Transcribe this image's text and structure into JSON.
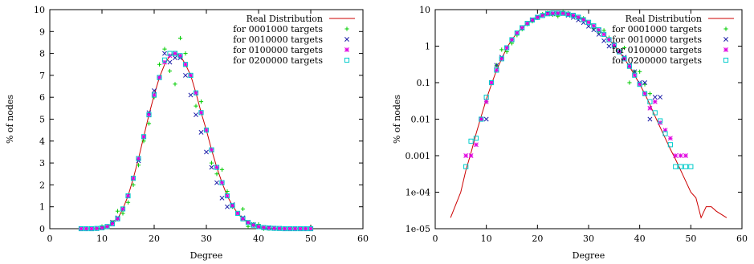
{
  "chart_data": [
    {
      "type": "scatter",
      "title": "",
      "xlabel": "Degree",
      "ylabel": "% of nodes",
      "xlim": [
        0,
        60
      ],
      "ylim": [
        0,
        10
      ],
      "yscale": "linear",
      "grid": false,
      "legend_position": "top-right",
      "x_ticks": [
        "0",
        "10",
        "20",
        "30",
        "40",
        "50",
        "60"
      ],
      "y_ticks": [
        "0",
        "1",
        "2",
        "3",
        "4",
        "5",
        "6",
        "7",
        "8",
        "9",
        "10"
      ],
      "series": [
        {
          "name": "Real Distribution",
          "kind": "line",
          "color": "#cc0000",
          "x": [
            6,
            7,
            8,
            9,
            10,
            11,
            12,
            13,
            14,
            15,
            16,
            17,
            18,
            19,
            20,
            21,
            22,
            23,
            24,
            25,
            26,
            27,
            28,
            29,
            30,
            31,
            32,
            33,
            34,
            35,
            36,
            37,
            38,
            39,
            40,
            41,
            42,
            43,
            44,
            45,
            46,
            47,
            48,
            49,
            50
          ],
          "y": [
            0,
            0,
            0,
            0.01,
            0.04,
            0.1,
            0.22,
            0.45,
            0.9,
            1.5,
            2.3,
            3.2,
            4.2,
            5.2,
            6.1,
            6.9,
            7.5,
            7.9,
            8.0,
            7.9,
            7.5,
            7.0,
            6.2,
            5.3,
            4.5,
            3.6,
            2.8,
            2.1,
            1.5,
            1.05,
            0.7,
            0.45,
            0.28,
            0.16,
            0.09,
            0.05,
            0.03,
            0.015,
            0.01,
            0,
            0,
            0,
            0,
            0,
            0
          ]
        },
        {
          "name": "for 0001000 targets",
          "kind": "points",
          "marker": "plus",
          "color": "#00cc00",
          "x": [
            6,
            7,
            8,
            9,
            10,
            11,
            12,
            13,
            14,
            15,
            16,
            17,
            18,
            19,
            20,
            21,
            22,
            23,
            24,
            25,
            26,
            27,
            28,
            29,
            30,
            31,
            32,
            33,
            34,
            35,
            36,
            37,
            38,
            39,
            40,
            41,
            42,
            43,
            44,
            45,
            46,
            47,
            48,
            49,
            50
          ],
          "y": [
            0,
            0,
            0,
            0,
            0.1,
            0.1,
            0.3,
            0.8,
            0.7,
            1.2,
            2.0,
            2.9,
            4.0,
            4.8,
            6.0,
            7.5,
            8.2,
            7.2,
            6.6,
            8.7,
            8.0,
            7.0,
            5.6,
            5.8,
            4.5,
            3.0,
            2.5,
            2.7,
            1.7,
            1.0,
            0.7,
            0.9,
            0.1,
            0.2,
            0.2,
            0,
            0,
            0,
            0,
            0,
            0,
            0,
            0,
            0,
            0
          ]
        },
        {
          "name": "for 0010000 targets",
          "kind": "points",
          "marker": "cross",
          "color": "#1f1fa8",
          "x": [
            6,
            7,
            8,
            9,
            10,
            11,
            12,
            13,
            14,
            15,
            16,
            17,
            18,
            19,
            20,
            21,
            22,
            23,
            24,
            25,
            26,
            27,
            28,
            29,
            30,
            31,
            32,
            33,
            34,
            35,
            36,
            37,
            38,
            39,
            40,
            41,
            42,
            43,
            44,
            45,
            46,
            47,
            48,
            49,
            50
          ],
          "y": [
            0,
            0,
            0,
            0.01,
            0.04,
            0.1,
            0.3,
            0.5,
            0.9,
            1.5,
            2.3,
            3.1,
            4.2,
            5.3,
            6.3,
            6.9,
            8.0,
            7.6,
            7.8,
            7.8,
            7.0,
            6.1,
            5.2,
            4.4,
            3.5,
            2.8,
            2.1,
            1.4,
            1.0,
            1.1,
            0.7,
            0.5,
            0.3,
            0.2,
            0.1,
            0.05,
            0.05,
            0.03,
            0.01,
            0,
            0,
            0,
            0,
            0,
            0
          ]
        },
        {
          "name": "for 0100000 targets",
          "kind": "points",
          "marker": "star",
          "color": "#e000e0",
          "x": [
            6,
            7,
            8,
            9,
            10,
            11,
            12,
            13,
            14,
            15,
            16,
            17,
            18,
            19,
            20,
            21,
            22,
            23,
            24,
            25,
            26,
            27,
            28,
            29,
            30,
            31,
            32,
            33,
            34,
            35,
            36,
            37,
            38,
            39,
            40,
            41,
            42,
            43,
            44,
            45,
            46,
            47,
            48,
            49,
            50
          ],
          "y": [
            0,
            0,
            0,
            0.01,
            0.04,
            0.1,
            0.22,
            0.45,
            0.9,
            1.5,
            2.3,
            3.2,
            4.2,
            5.2,
            6.1,
            6.9,
            7.6,
            7.9,
            8.0,
            7.9,
            7.5,
            7.0,
            6.2,
            5.3,
            4.5,
            3.6,
            2.8,
            2.1,
            1.5,
            1.05,
            0.7,
            0.45,
            0.28,
            0.16,
            0.09,
            0.05,
            0.03,
            0.015,
            0.01,
            0,
            0,
            0,
            0,
            0,
            0
          ]
        },
        {
          "name": "for 0200000 targets",
          "kind": "points",
          "marker": "square",
          "color": "#00cccc",
          "x": [
            6,
            7,
            8,
            9,
            10,
            11,
            12,
            13,
            14,
            15,
            16,
            17,
            18,
            19,
            20,
            21,
            22,
            23,
            24,
            25,
            26,
            27,
            28,
            29,
            30,
            31,
            32,
            33,
            34,
            35,
            36,
            37,
            38,
            39,
            40,
            41,
            42,
            43,
            44,
            45,
            46,
            47,
            48,
            49,
            50
          ],
          "y": [
            0,
            0,
            0,
            0.01,
            0.04,
            0.1,
            0.22,
            0.45,
            0.9,
            1.5,
            2.3,
            3.2,
            4.2,
            5.2,
            6.1,
            6.9,
            7.7,
            8.0,
            8.0,
            7.9,
            7.5,
            7.0,
            6.2,
            5.3,
            4.5,
            3.6,
            2.8,
            2.1,
            1.5,
            1.05,
            0.7,
            0.45,
            0.28,
            0.16,
            0.09,
            0.05,
            0.03,
            0.015,
            0.01,
            0,
            0,
            0,
            0,
            0,
            0
          ]
        }
      ]
    },
    {
      "type": "scatter",
      "title": "",
      "xlabel": "Degree",
      "ylabel": "% of nodes",
      "xlim": [
        0,
        60
      ],
      "ylim": [
        1e-05,
        10
      ],
      "yscale": "log",
      "grid": false,
      "legend_position": "top-right",
      "x_ticks": [
        "0",
        "10",
        "20",
        "30",
        "40",
        "50",
        "60"
      ],
      "y_ticks": [
        "1e-05",
        "1e-04",
        "0.001",
        "0.01",
        "0.1",
        "1",
        "10"
      ],
      "series": [
        {
          "name": "Real Distribution",
          "kind": "line",
          "color": "#cc0000",
          "x": [
            3,
            5,
            6,
            7,
            8,
            9,
            10,
            11,
            12,
            13,
            14,
            15,
            16,
            17,
            18,
            19,
            20,
            21,
            22,
            23,
            24,
            25,
            26,
            27,
            28,
            29,
            30,
            31,
            32,
            33,
            34,
            35,
            36,
            37,
            38,
            39,
            40,
            41,
            42,
            43,
            44,
            45,
            46,
            47,
            48,
            49,
            50,
            51,
            52,
            53,
            54,
            55,
            57
          ],
          "y": [
            2e-05,
            0.0001,
            0.0004,
            0.0012,
            0.004,
            0.012,
            0.035,
            0.09,
            0.22,
            0.45,
            0.9,
            1.5,
            2.3,
            3.2,
            4.2,
            5.2,
            6.1,
            6.9,
            7.5,
            7.9,
            8.0,
            7.9,
            7.5,
            7.0,
            6.2,
            5.3,
            4.5,
            3.6,
            2.8,
            2.1,
            1.5,
            1.05,
            0.7,
            0.45,
            0.28,
            0.16,
            0.09,
            0.05,
            0.025,
            0.012,
            0.006,
            0.003,
            0.0015,
            0.0008,
            0.0004,
            0.0002,
            0.0001,
            7e-05,
            2e-05,
            4e-05,
            4e-05,
            3e-05,
            2e-05
          ]
        },
        {
          "name": "for 0001000 targets",
          "kind": "points",
          "marker": "plus",
          "color": "#00cc00",
          "x": [
            9,
            10,
            11,
            12,
            13,
            14,
            15,
            16,
            17,
            18,
            19,
            20,
            21,
            22,
            23,
            24,
            25,
            26,
            27,
            28,
            29,
            30,
            31,
            32,
            33,
            34,
            35,
            36,
            37,
            38,
            39,
            40,
            41,
            42
          ],
          "y": [
            0.01,
            0.03,
            0.1,
            0.3,
            0.8,
            0.7,
            1.2,
            2.0,
            2.9,
            4.0,
            4.8,
            6.0,
            7.5,
            8.2,
            7.2,
            6.6,
            8.7,
            8.0,
            7.0,
            5.6,
            5.8,
            4.5,
            3.0,
            2.5,
            2.7,
            1.7,
            1.0,
            0.7,
            0.9,
            0.1,
            0.2,
            0.2,
            0.09,
            0.05
          ]
        },
        {
          "name": "for 0010000 targets",
          "kind": "points",
          "marker": "cross",
          "color": "#1f1fa8",
          "x": [
            9,
            10,
            11,
            12,
            13,
            14,
            15,
            16,
            17,
            18,
            19,
            20,
            21,
            22,
            23,
            24,
            25,
            26,
            27,
            28,
            29,
            30,
            31,
            32,
            33,
            34,
            35,
            36,
            37,
            38,
            39,
            40,
            41,
            42,
            43,
            44
          ],
          "y": [
            0.01,
            0.01,
            0.1,
            0.3,
            0.5,
            0.9,
            1.5,
            2.3,
            3.1,
            4.2,
            5.3,
            6.3,
            6.9,
            8.0,
            7.6,
            7.8,
            7.8,
            7.0,
            6.1,
            5.2,
            4.4,
            3.5,
            2.8,
            2.1,
            1.4,
            1.0,
            1.1,
            0.7,
            0.5,
            0.3,
            0.2,
            0.1,
            0.1,
            0.01,
            0.04,
            0.04
          ]
        },
        {
          "name": "for 0100000 targets",
          "kind": "points",
          "marker": "star",
          "color": "#e000e0",
          "x": [
            6,
            7,
            8,
            9,
            10,
            11,
            12,
            13,
            14,
            15,
            16,
            17,
            18,
            19,
            20,
            21,
            22,
            23,
            24,
            25,
            26,
            27,
            28,
            29,
            30,
            31,
            32,
            33,
            34,
            35,
            36,
            37,
            38,
            39,
            40,
            41,
            42,
            43,
            44,
            45,
            46,
            47,
            48,
            49
          ],
          "y": [
            0.001,
            0.001,
            0.002,
            0.01,
            0.03,
            0.1,
            0.22,
            0.45,
            0.9,
            1.5,
            2.3,
            3.2,
            4.2,
            5.2,
            6.1,
            6.9,
            7.6,
            7.9,
            8.0,
            7.9,
            7.5,
            7.0,
            6.2,
            5.3,
            4.5,
            3.6,
            2.8,
            2.1,
            1.5,
            1.05,
            0.7,
            0.45,
            0.28,
            0.16,
            0.09,
            0.05,
            0.02,
            0.03,
            0.008,
            0.005,
            0.003,
            0.001,
            0.001,
            0.001
          ]
        },
        {
          "name": "for 0200000 targets",
          "kind": "points",
          "marker": "square",
          "color": "#00cccc",
          "x": [
            6,
            7,
            8,
            9,
            10,
            11,
            12,
            13,
            14,
            15,
            16,
            17,
            18,
            19,
            20,
            21,
            22,
            23,
            24,
            25,
            26,
            27,
            28,
            29,
            30,
            31,
            32,
            33,
            34,
            35,
            36,
            37,
            38,
            39,
            40,
            41,
            42,
            43,
            44,
            45,
            46,
            47,
            48,
            49,
            50
          ],
          "y": [
            0.0005,
            0.0025,
            0.003,
            0.01,
            0.04,
            0.1,
            0.22,
            0.45,
            0.9,
            1.5,
            2.3,
            3.2,
            4.2,
            5.2,
            6.1,
            6.9,
            7.7,
            8.0,
            8.0,
            7.9,
            7.5,
            7.0,
            6.2,
            5.3,
            4.5,
            3.6,
            2.8,
            2.1,
            1.5,
            1.05,
            0.7,
            0.45,
            0.28,
            0.16,
            0.09,
            0.05,
            0.03,
            0.015,
            0.009,
            0.004,
            0.002,
            0.0005,
            0.0005,
            0.0005,
            0.0005
          ]
        }
      ]
    }
  ]
}
